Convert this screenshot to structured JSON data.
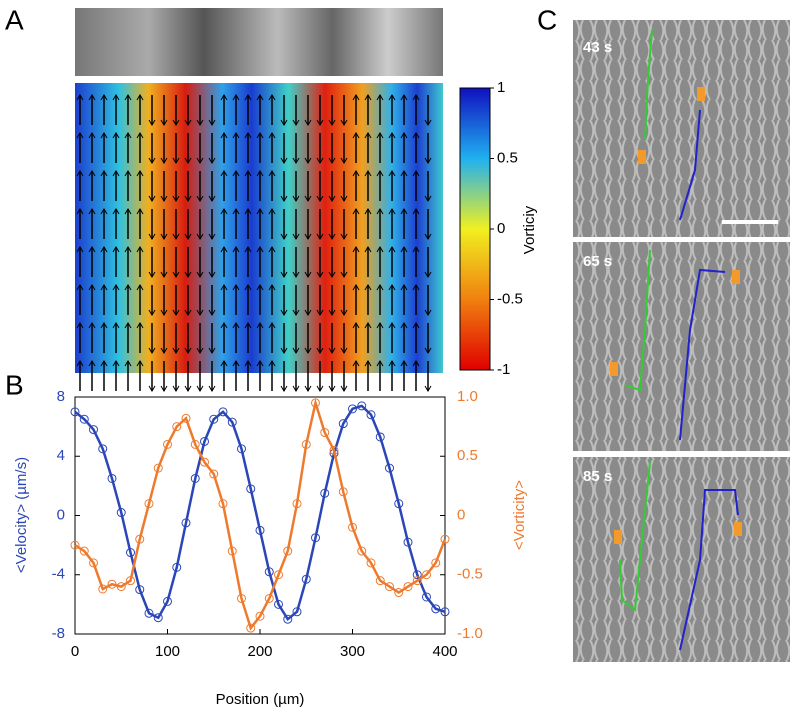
{
  "panel_labels": [
    "A",
    "B",
    "C"
  ],
  "colorbar": {
    "label": "Vorticiy",
    "ticks": [
      1,
      0.5,
      0,
      -0.5,
      -1
    ],
    "lim": [
      -1,
      1
    ]
  },
  "time_labels": [
    "43 s",
    "65 s",
    "85 s"
  ],
  "chart_data": {
    "type": "line",
    "xlabel": "Position (µm)",
    "ylabel": "<Velocity> (µm/s)",
    "y2label": "<Vorticity>",
    "xlim": [
      0,
      400
    ],
    "xticks": [
      0,
      100,
      200,
      300,
      400
    ],
    "ylim": [
      -8,
      8
    ],
    "yticks": [
      -8,
      -4,
      0,
      4,
      8
    ],
    "y2lim": [
      -1,
      1
    ],
    "y2ticks": [
      {
        "value": -1,
        "label": "-1.0"
      },
      -0.5,
      0,
      0.5,
      {
        "value": 1,
        "label": "1.0"
      }
    ],
    "x": [
      0,
      10,
      20,
      30,
      40,
      50,
      60,
      70,
      80,
      90,
      100,
      110,
      120,
      130,
      140,
      150,
      160,
      170,
      180,
      190,
      200,
      210,
      220,
      230,
      240,
      250,
      260,
      270,
      280,
      290,
      300,
      310,
      320,
      330,
      340,
      350,
      360,
      370,
      380,
      390,
      400
    ],
    "series": [
      {
        "name": "<Velocity>",
        "color": "#2a46b8",
        "axis": "y",
        "values": [
          7,
          6.5,
          5.8,
          4.5,
          2.5,
          0.2,
          -2.5,
          -5,
          -6.6,
          -6.9,
          -5.8,
          -3.5,
          -0.5,
          2.5,
          5,
          6.5,
          7,
          6.3,
          4.5,
          1.8,
          -1,
          -3.8,
          -6,
          -7,
          -6.5,
          -4.3,
          -1.5,
          1.5,
          4.2,
          6.2,
          7.2,
          7.4,
          6.8,
          5.3,
          3.2,
          0.8,
          -1.8,
          -4,
          -5.5,
          -6.3,
          -6.5
        ]
      },
      {
        "name": "<Vorticity>",
        "color": "#ee7a2e",
        "axis": "y2",
        "values": [
          -0.25,
          -0.3,
          -0.4,
          -0.62,
          -0.58,
          -0.6,
          -0.55,
          -0.2,
          0.1,
          0.4,
          0.6,
          0.75,
          0.82,
          0.6,
          0.45,
          0.35,
          0.1,
          -0.3,
          -0.7,
          -0.95,
          -0.85,
          -0.7,
          -0.5,
          -0.3,
          0.1,
          0.6,
          0.95,
          0.7,
          0.55,
          0.2,
          -0.1,
          -0.3,
          -0.4,
          -0.55,
          -0.6,
          -0.65,
          -0.6,
          -0.55,
          -0.5,
          -0.4,
          -0.2
        ]
      }
    ]
  }
}
